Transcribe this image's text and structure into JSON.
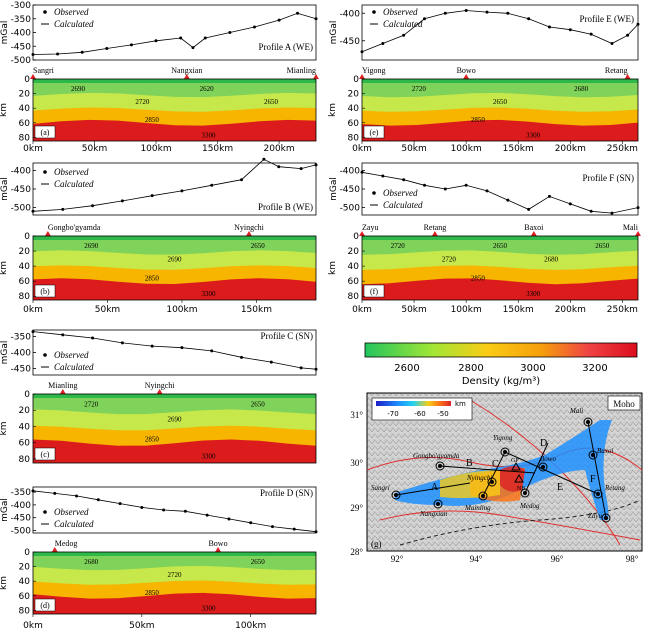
{
  "figure": {
    "ylabel_gravity": "mGal",
    "ylabel_depth": "km",
    "legend_observed": "Observed",
    "legend_calculated": "Calculated",
    "colorbar": {
      "ticks": [
        "2600",
        "2800",
        "3000",
        "3200"
      ],
      "label": "Density (kg/m³)",
      "range": [
        2450,
        3350
      ]
    }
  },
  "panels": [
    {
      "id": "a",
      "title": "Profile A (WE)",
      "letter": "(a)",
      "gravity_yticks": [
        "-300",
        "-350",
        "-400",
        "-450",
        "-500"
      ],
      "gravity_range": [
        -500,
        -300
      ],
      "x_ticks": [
        "0km",
        "50km",
        "100km",
        "150km",
        "200km"
      ],
      "x_max_km": 230,
      "depth_ticks": [
        "0",
        "20",
        "40",
        "60",
        "80"
      ],
      "stations": [
        {
          "name": "Sangri",
          "km": 0
        },
        {
          "name": "Nangxian",
          "km": 125
        },
        {
          "name": "Mianling",
          "km": 230
        }
      ],
      "density_labels": [
        "2690",
        "2720",
        "2620",
        "2650",
        "2850",
        "3300"
      ],
      "chart_data": {
        "type": "scatter",
        "x_km": [
          0,
          20,
          40,
          60,
          80,
          100,
          120,
          130,
          140,
          160,
          180,
          200,
          215,
          230
        ],
        "gravity_mgal": [
          -480,
          -478,
          -472,
          -458,
          -445,
          -430,
          -420,
          -455,
          -420,
          -400,
          -380,
          -355,
          -330,
          -350
        ]
      }
    },
    {
      "id": "b",
      "title": "Profile B (WE)",
      "letter": "(b)",
      "gravity_yticks": [
        "-400",
        "-450",
        "-500"
      ],
      "gravity_range": [
        -520,
        -380
      ],
      "x_ticks": [
        "0km",
        "50km",
        "100km",
        "150km"
      ],
      "x_max_km": 190,
      "depth_ticks": [
        "0",
        "20",
        "40",
        "60",
        "80"
      ],
      "stations": [
        {
          "name": "Gongbo'gyamda",
          "km": 10
        },
        {
          "name": "Nyingchi",
          "km": 145
        }
      ],
      "density_labels": [
        "2690",
        "2690",
        "2650",
        "2850",
        "3300"
      ],
      "chart_data": {
        "type": "scatter",
        "x_km": [
          0,
          20,
          40,
          60,
          80,
          100,
          120,
          140,
          155,
          165,
          180,
          190
        ],
        "gravity_mgal": [
          -510,
          -505,
          -495,
          -482,
          -468,
          -455,
          -440,
          -425,
          -370,
          -390,
          -395,
          -385
        ]
      }
    },
    {
      "id": "c",
      "title": "Profile C (SN)",
      "letter": "(c)",
      "gravity_yticks": [
        "-350",
        "-400",
        "-450"
      ],
      "gravity_range": [
        -470,
        -330
      ],
      "x_ticks": [],
      "x_max_km": 190,
      "depth_ticks": [
        "0",
        "20",
        "40",
        "60",
        "80"
      ],
      "stations": [
        {
          "name": "Mianling",
          "km": 20
        },
        {
          "name": "Nyingchi",
          "km": 85
        }
      ],
      "density_labels": [
        "2720",
        "2690",
        "2650",
        "2850",
        "3300"
      ],
      "chart_data": {
        "type": "scatter",
        "x_km": [
          0,
          20,
          40,
          60,
          80,
          100,
          120,
          140,
          160,
          180,
          190
        ],
        "gravity_mgal": [
          -335,
          -345,
          -355,
          -370,
          -380,
          -385,
          -395,
          -415,
          -430,
          -448,
          -452
        ]
      }
    },
    {
      "id": "d",
      "title": "Profile D (SN)",
      "letter": "(d)",
      "gravity_yticks": [
        "-350",
        "-400",
        "-450",
        "-500"
      ],
      "gravity_range": [
        -510,
        -330
      ],
      "x_ticks": [
        "0km",
        "50km",
        "100km"
      ],
      "x_max_km": 130,
      "depth_ticks": [
        "0",
        "20",
        "40",
        "60",
        "80"
      ],
      "stations": [
        {
          "name": "Medog",
          "km": 10
        },
        {
          "name": "Bowo",
          "km": 85
        }
      ],
      "density_labels": [
        "2680",
        "2720",
        "2650",
        "2850",
        "3300"
      ],
      "chart_data": {
        "type": "scatter",
        "x_km": [
          0,
          10,
          20,
          30,
          40,
          50,
          60,
          70,
          80,
          90,
          100,
          110,
          120,
          130
        ],
        "gravity_mgal": [
          -345,
          -355,
          -365,
          -380,
          -395,
          -410,
          -420,
          -425,
          -440,
          -455,
          -470,
          -485,
          -495,
          -505
        ]
      }
    },
    {
      "id": "e",
      "title": "Profile E (WE)",
      "letter": "(e)",
      "gravity_yticks": [
        "-400",
        "-450"
      ],
      "gravity_range": [
        -485,
        -385
      ],
      "x_ticks": [
        "0km",
        "50km",
        "100km",
        "150km",
        "200km",
        "250km"
      ],
      "x_max_km": 265,
      "depth_ticks": [
        "0",
        "20",
        "40",
        "60",
        "80"
      ],
      "stations": [
        {
          "name": "Yigong",
          "km": 0
        },
        {
          "name": "Bowo",
          "km": 100
        },
        {
          "name": "Retang",
          "km": 255
        }
      ],
      "density_labels": [
        "2720",
        "2650",
        "2680",
        "2850",
        "3300"
      ],
      "chart_data": {
        "type": "scatter",
        "x_km": [
          0,
          20,
          40,
          60,
          80,
          100,
          120,
          140,
          160,
          180,
          200,
          220,
          240,
          255,
          265
        ],
        "gravity_mgal": [
          -470,
          -455,
          -440,
          -410,
          -400,
          -395,
          -398,
          -400,
          -410,
          -425,
          -430,
          -438,
          -455,
          -440,
          -420
        ]
      }
    },
    {
      "id": "f",
      "title": "Profile F (SN)",
      "letter": "(f)",
      "gravity_yticks": [
        "-400",
        "-450",
        "-500"
      ],
      "gravity_range": [
        -520,
        -380
      ],
      "x_ticks": [
        "0km",
        "50km",
        "100km",
        "150km",
        "200km",
        "250km"
      ],
      "x_max_km": 265,
      "depth_ticks": [
        "0",
        "20",
        "40",
        "60",
        "80"
      ],
      "stations": [
        {
          "name": "Zayu",
          "km": 0
        },
        {
          "name": "Retang",
          "km": 70
        },
        {
          "name": "Baxoi",
          "km": 165
        },
        {
          "name": "Mali",
          "km": 265
        }
      ],
      "density_labels": [
        "2720",
        "2720",
        "2650",
        "2680",
        "2650",
        "2850",
        "3300"
      ],
      "chart_data": {
        "type": "scatter",
        "x_km": [
          0,
          20,
          40,
          60,
          80,
          100,
          120,
          140,
          160,
          180,
          200,
          220,
          240,
          265
        ],
        "gravity_mgal": [
          -405,
          -415,
          -425,
          -440,
          -450,
          -440,
          -455,
          -480,
          -505,
          -470,
          -490,
          -510,
          -515,
          -500
        ]
      }
    }
  ],
  "map": {
    "label": "Moho",
    "letter": "(g)",
    "colorbar_ticks": [
      "-70",
      "-60",
      "-50"
    ],
    "colorbar_unit": "km",
    "lat_ticks": [
      "31°",
      "30°",
      "29°",
      "28°"
    ],
    "lon_ticks": [
      "92°",
      "94°",
      "96°",
      "98°"
    ],
    "profile_letters": [
      "A",
      "B",
      "C",
      "D",
      "E",
      "F"
    ],
    "places": [
      "Mali",
      "Yigong",
      "Gongbo'gyamda",
      "Bowo",
      "Baxoi",
      "Nyingchi",
      "Sangri",
      "Nangxian",
      "Mainling",
      "Medog",
      "Retang",
      "Zayu",
      "GP",
      "NB"
    ]
  }
}
